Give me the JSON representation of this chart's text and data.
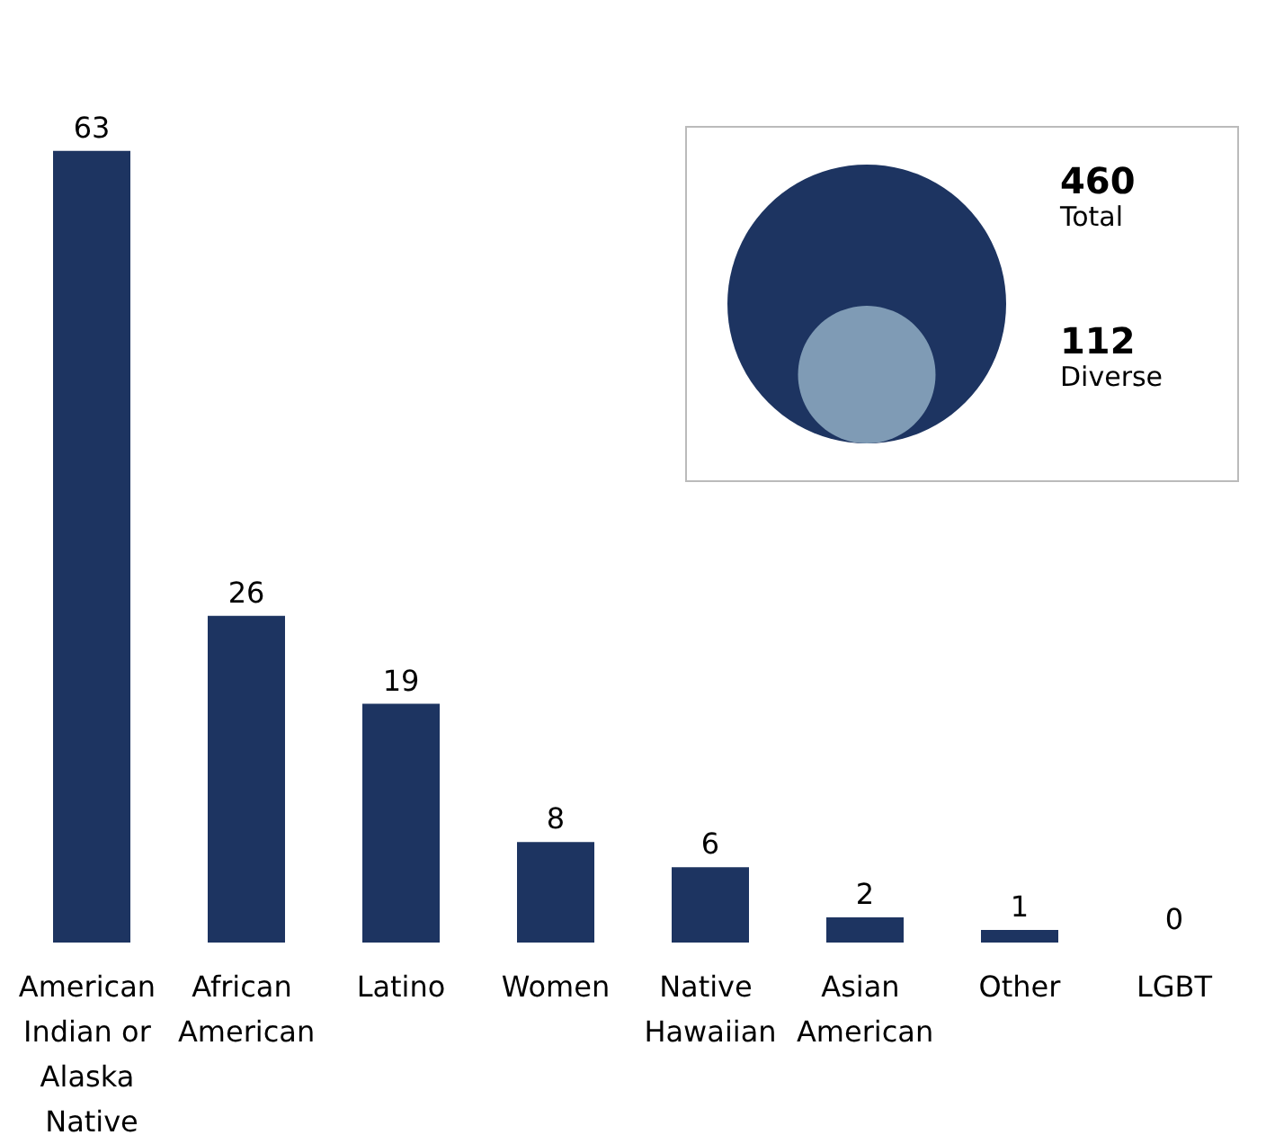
{
  "chart_data": [
    {
      "type": "bar",
      "categories": [
        "American Indian or Alaska Native",
        "African American",
        "Latino",
        "Women",
        "Native Hawaiian",
        "Asian American",
        "Other",
        "LGBT"
      ],
      "values": [
        63,
        26,
        19,
        8,
        6,
        2,
        1,
        0
      ],
      "color": "#1d3461",
      "data_labels": true
    },
    {
      "type": "other",
      "categories": [
        "Total",
        "Diverse"
      ],
      "values": [
        460,
        112
      ],
      "colors": [
        "#1d3461",
        "#7f9bb5"
      ],
      "data_labels": true
    }
  ]
}
